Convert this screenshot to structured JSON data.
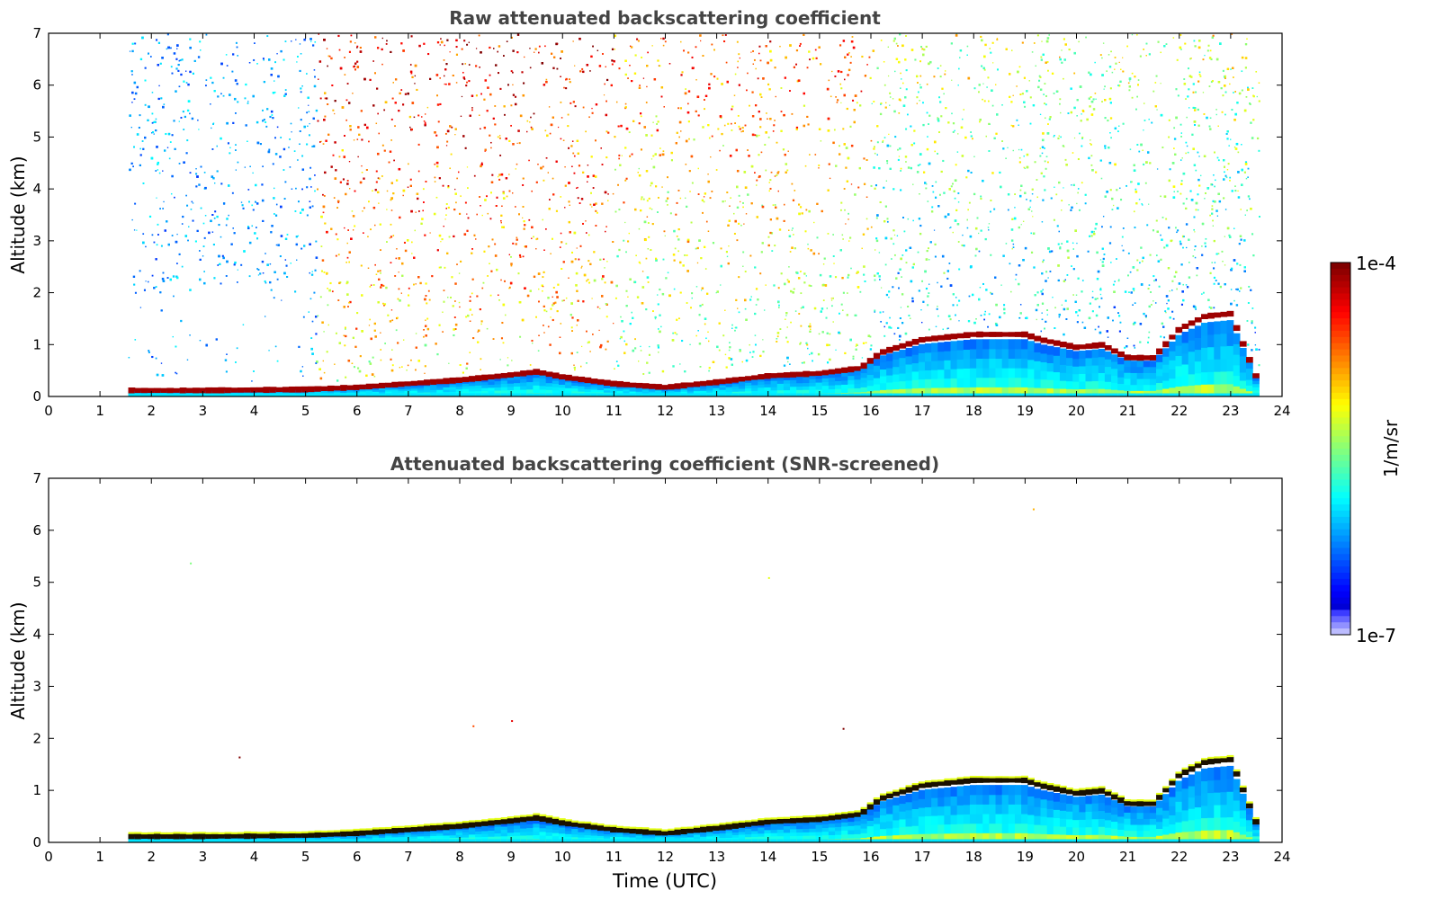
{
  "chart_data": [
    {
      "type": "heatmap",
      "title": "Raw attenuated backscattering coefficient",
      "xlabel": "",
      "ylabel": "Altitude (km)",
      "xlim": [
        0,
        24
      ],
      "ylim": [
        0,
        7
      ],
      "xticks": [
        "0",
        "1",
        "2",
        "3",
        "4",
        "5",
        "6",
        "7",
        "8",
        "9",
        "10",
        "11",
        "12",
        "13",
        "14",
        "15",
        "16",
        "17",
        "18",
        "19",
        "20",
        "21",
        "22",
        "23",
        "24"
      ],
      "yticks": [
        "0",
        "1",
        "2",
        "3",
        "4",
        "5",
        "6",
        "7"
      ],
      "data_time_range": [
        1.55,
        23.55
      ],
      "description_values": {
        "boundary_layer_top_km": {
          "time": [
            1.55,
            3,
            5,
            6,
            7,
            8,
            9,
            9.5,
            10,
            11,
            12,
            13,
            14,
            15,
            15.8,
            16.2,
            17,
            18,
            19,
            19.3,
            20,
            20.5,
            21,
            21.5,
            22,
            22.5,
            23,
            23.55
          ],
          "height": [
            0.12,
            0.12,
            0.14,
            0.18,
            0.25,
            0.32,
            0.42,
            0.48,
            0.38,
            0.25,
            0.18,
            0.28,
            0.4,
            0.45,
            0.55,
            0.85,
            1.1,
            1.2,
            1.2,
            1.1,
            0.95,
            1.0,
            0.75,
            0.75,
            1.3,
            1.55,
            1.6,
            0.25
          ]
        }
      }
    },
    {
      "type": "heatmap",
      "title": "Attenuated backscattering coefficient (SNR-screened)",
      "xlabel": "Time (UTC)",
      "ylabel": "Altitude (km)",
      "xlim": [
        0,
        24
      ],
      "ylim": [
        0,
        7
      ],
      "xticks": [
        "0",
        "1",
        "2",
        "3",
        "4",
        "5",
        "6",
        "7",
        "8",
        "9",
        "10",
        "11",
        "12",
        "13",
        "14",
        "15",
        "16",
        "17",
        "18",
        "19",
        "20",
        "21",
        "22",
        "23",
        "24"
      ],
      "yticks": [
        "0",
        "1",
        "2",
        "3",
        "4",
        "5",
        "6",
        "7"
      ],
      "data_time_range": [
        1.55,
        23.55
      ]
    }
  ],
  "colorbar": {
    "label": "1/m/sr",
    "max_label": "1e-4",
    "min_label": "1e-7",
    "colormap": "jet"
  }
}
